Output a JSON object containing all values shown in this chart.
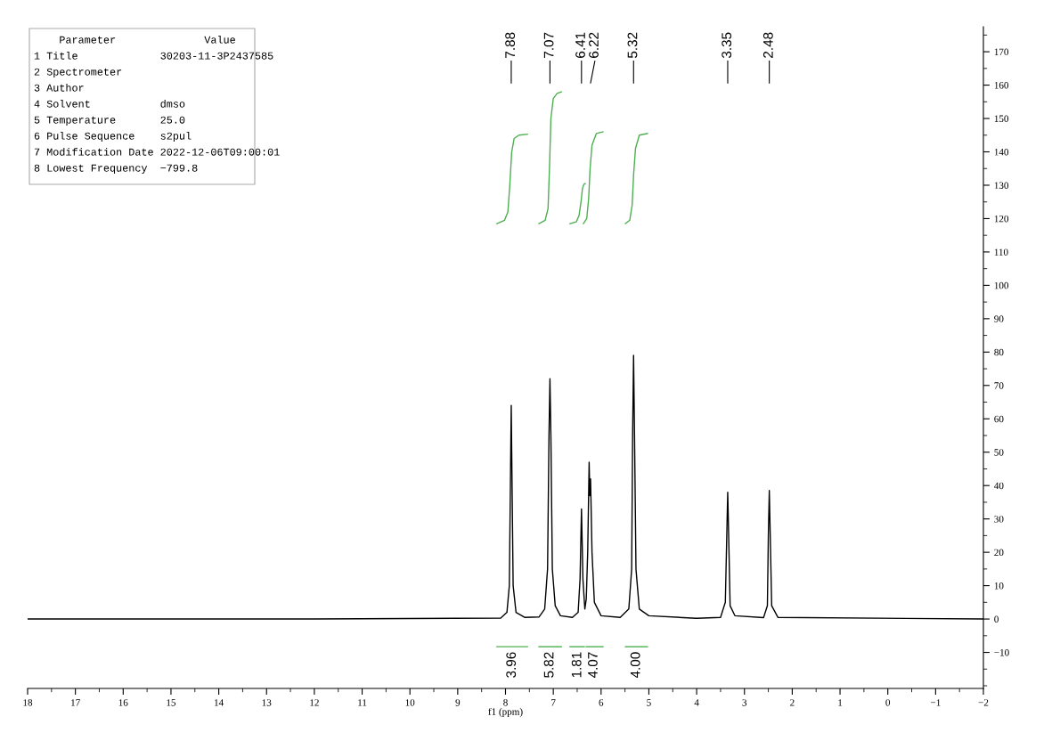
{
  "chart_data": {
    "type": "line",
    "xlabel": "f1 (ppm)",
    "xlim": [
      18,
      -2
    ],
    "xticks": [
      18,
      17,
      16,
      15,
      14,
      13,
      12,
      11,
      10,
      9,
      8,
      7,
      6,
      5,
      4,
      3,
      2,
      1,
      0,
      {
        "value": -1,
        "label": "−1"
      },
      {
        "value": -2,
        "label": "−2"
      }
    ],
    "ylim": [
      -20.8,
      177.5
    ],
    "yticks": [
      {
        "value": -10,
        "label": "−10"
      },
      0,
      10,
      20,
      30,
      40,
      50,
      60,
      70,
      80,
      90,
      100,
      110,
      120,
      130,
      140,
      150,
      160,
      170
    ],
    "grid": false,
    "legend": false,
    "marker": "none",
    "line_style": "solid",
    "series": [
      {
        "color": "#000000",
        "x": [
          18,
          12,
          8.1,
          7.97,
          7.92,
          7.89,
          7.88,
          7.87,
          7.84,
          7.78,
          7.6,
          7.3,
          7.18,
          7.12,
          7.09,
          7.07,
          7.05,
          7.02,
          6.96,
          6.85,
          6.6,
          6.48,
          6.44,
          6.41,
          6.38,
          6.34,
          6.31,
          6.28,
          6.25,
          6.235,
          6.22,
          6.19,
          6.14,
          6.0,
          5.6,
          5.42,
          5.36,
          5.34,
          5.32,
          5.3,
          5.27,
          5.2,
          5.0,
          4.0,
          3.5,
          3.4,
          3.37,
          3.35,
          3.33,
          3.3,
          3.2,
          2.6,
          2.52,
          2.5,
          2.48,
          2.46,
          2.43,
          2.3,
          -2
        ],
        "values": [
          0,
          0,
          0.3,
          2,
          10,
          50,
          64,
          50,
          10,
          2,
          0.5,
          0.6,
          3,
          15,
          55,
          72,
          55,
          15,
          4,
          1,
          0.5,
          2,
          12,
          33,
          12,
          3,
          6,
          20,
          47,
          37,
          42,
          20,
          5,
          1,
          0.5,
          3,
          15,
          55,
          79,
          55,
          15,
          3,
          1,
          0.2,
          0.5,
          5,
          25,
          38,
          25,
          4,
          1,
          0.4,
          4,
          25,
          38.5,
          25,
          4,
          0.5,
          0
        ]
      },
      {
        "color": "#4caf50",
        "x": [
          8.18,
          8.02,
          7.95,
          7.91,
          7.87,
          7.82,
          7.72,
          7.54
        ],
        "values": [
          118.5,
          119.5,
          122,
          130,
          140,
          144,
          145,
          145.3
        ]
      },
      {
        "color": "#4caf50",
        "x": [
          7.3,
          7.17,
          7.11,
          7.08,
          7.05,
          7.0,
          6.92,
          6.83
        ],
        "values": [
          118.5,
          119.5,
          123,
          135,
          150,
          156,
          157.5,
          158
        ]
      },
      {
        "color": "#4caf50",
        "x": [
          6.65,
          6.52,
          6.46,
          6.42,
          6.39,
          6.36,
          6.33
        ],
        "values": [
          118.5,
          119,
          121,
          125,
          129,
          130.3,
          130.5
        ]
      },
      {
        "color": "#4caf50",
        "x": [
          6.37,
          6.3,
          6.26,
          6.23,
          6.19,
          6.1,
          5.96
        ],
        "values": [
          118.5,
          120,
          126,
          135,
          142,
          145.5,
          146
        ]
      },
      {
        "color": "#4caf50",
        "x": [
          5.49,
          5.4,
          5.35,
          5.32,
          5.28,
          5.2,
          5.03
        ],
        "values": [
          118.5,
          119.5,
          124,
          133,
          141,
          145,
          145.5
        ]
      },
      {
        "color": "#4caf50",
        "x": [
          8.18,
          7.54
        ],
        "values": [
          -8.3,
          -8.3
        ]
      },
      {
        "color": "#4caf50",
        "x": [
          7.3,
          6.83
        ],
        "values": [
          -8.3,
          -8.3
        ]
      },
      {
        "color": "#4caf50",
        "x": [
          6.65,
          6.35
        ],
        "values": [
          -8.3,
          -8.3
        ]
      },
      {
        "color": "#4caf50",
        "x": [
          6.31,
          5.96
        ],
        "values": [
          -8.3,
          -8.3
        ]
      },
      {
        "color": "#4caf50",
        "x": [
          5.49,
          5.03
        ],
        "values": [
          -8.3,
          -8.3
        ]
      }
    ],
    "annotations": [
      "    Parameter              Value",
      "1 Title             30203-11-3P2437585",
      "2 Spectrometer",
      "3 Author",
      "4 Solvent           dmso",
      "5 Temperature       25.0",
      "6 Pulse Sequence    s2pul",
      "7 Modification Date 2022-12-06T09:00:01",
      "8 Lowest Frequency  −799.8",
      "7.88",
      "7.07",
      "6.41",
      "6.22",
      "5.32",
      "3.35",
      "2.48",
      {
        "text": "3.96",
        "x": 7.86,
        "y": -8.3
      },
      {
        "text": "5.82",
        "x": 7.07,
        "y": -8.3
      },
      {
        "text": "1.81",
        "x": 6.49,
        "y": -8.3
      },
      {
        "text": "4.07",
        "x": 6.15,
        "y": -8.3
      },
      {
        "text": "4.00",
        "x": 5.26,
        "y": -8.3
      }
    ]
  }
}
